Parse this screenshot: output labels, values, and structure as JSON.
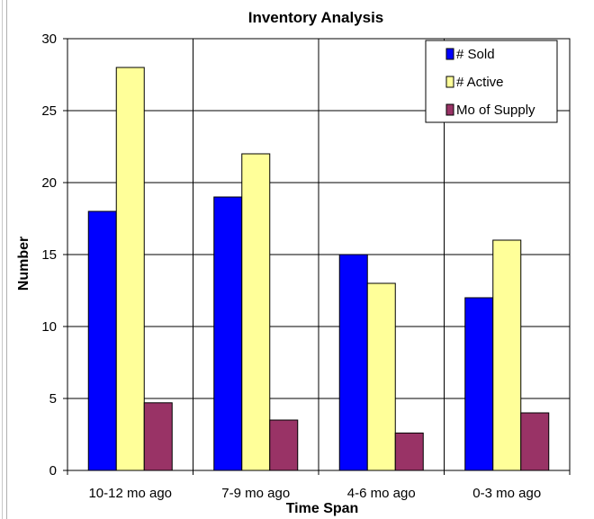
{
  "chart_data": {
    "type": "bar",
    "title": "Inventory Analysis",
    "xlabel": "Time Span",
    "ylabel": "Number",
    "categories": [
      "10-12 mo ago",
      "7-9 mo ago",
      "4-6 mo ago",
      "0-3 mo ago"
    ],
    "series": [
      {
        "name": "# Sold",
        "values": [
          18,
          19,
          15,
          12
        ],
        "color": "#0000ff"
      },
      {
        "name": "# Active",
        "values": [
          28,
          22,
          13,
          16
        ],
        "color": "#ffff99"
      },
      {
        "name": "Mo of Supply",
        "values": [
          4.7,
          3.5,
          2.6,
          4.0
        ],
        "color": "#993366"
      }
    ],
    "ylim": [
      0,
      30
    ],
    "yticks": [
      0,
      5,
      10,
      15,
      20,
      25,
      30
    ],
    "grid": true,
    "legend_position": "top-right"
  }
}
